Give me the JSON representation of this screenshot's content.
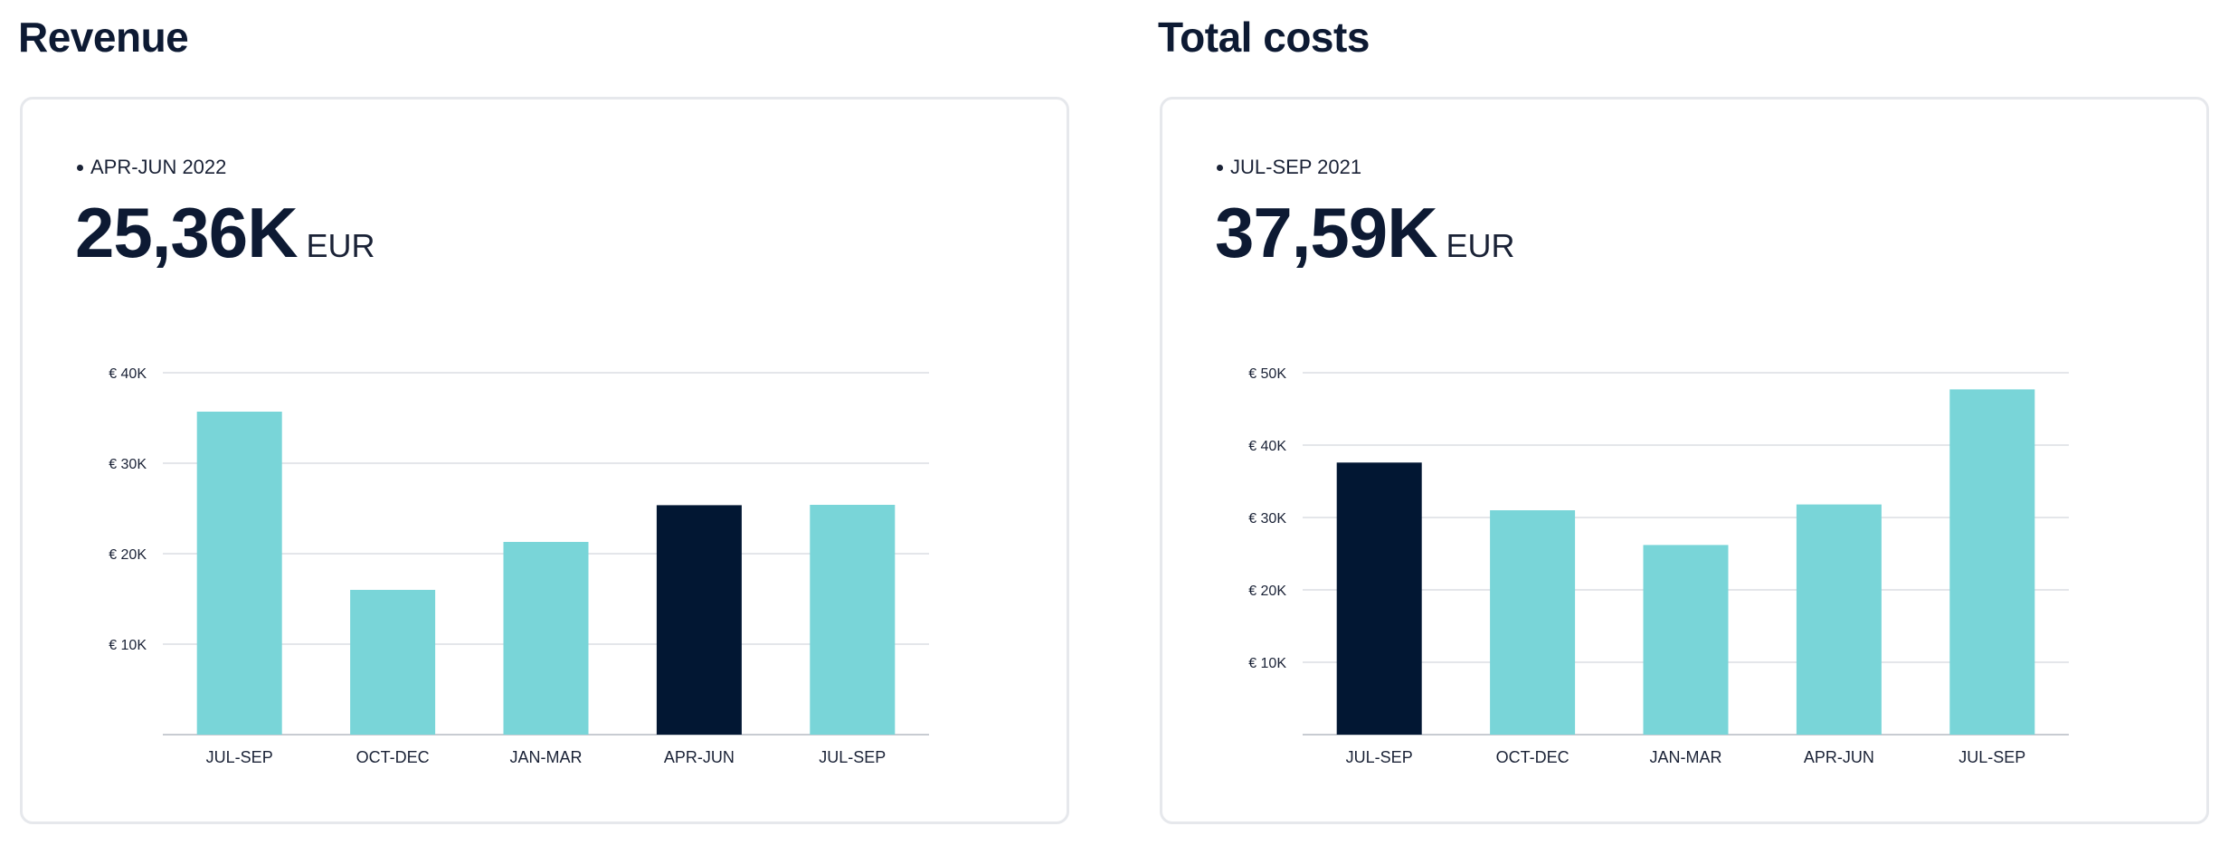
{
  "colors": {
    "bar": "#79d5d8",
    "highlight": "#021733",
    "grid": "#e4e6ea",
    "axis": "#c8ccd2"
  },
  "revenue": {
    "title": "Revenue",
    "period": "APR-JUN 2022",
    "kpi_value": "25,36K",
    "kpi_unit": "EUR",
    "chart_data": {
      "type": "bar",
      "title": "Revenue",
      "categories": [
        "JUL-SEP",
        "OCT-DEC",
        "JAN-MAR",
        "APR-JUN",
        "JUL-SEP"
      ],
      "values": [
        35700,
        16000,
        21300,
        25360,
        25400
      ],
      "highlight_index": 3,
      "ylim": [
        0,
        40000
      ],
      "yticks": [
        10000,
        20000,
        30000,
        40000
      ],
      "ytick_labels": [
        "€ 10K",
        "€ 20K",
        "€ 30K",
        "€ 40K"
      ],
      "grid": true
    }
  },
  "costs": {
    "title": "Total costs",
    "period": "JUL-SEP 2021",
    "kpi_value": "37,59K",
    "kpi_unit": "EUR",
    "chart_data": {
      "type": "bar",
      "title": "Total costs",
      "categories": [
        "JUL-SEP",
        "OCT-DEC",
        "JAN-MAR",
        "APR-JUN",
        "JUL-SEP"
      ],
      "values": [
        37590,
        31000,
        26200,
        31800,
        47700
      ],
      "highlight_index": 0,
      "ylim": [
        0,
        50000
      ],
      "yticks": [
        10000,
        20000,
        30000,
        40000,
        50000
      ],
      "ytick_labels": [
        "€ 10K",
        "€ 20K",
        "€ 30K",
        "€ 40K",
        "€ 50K"
      ],
      "grid": true
    }
  }
}
